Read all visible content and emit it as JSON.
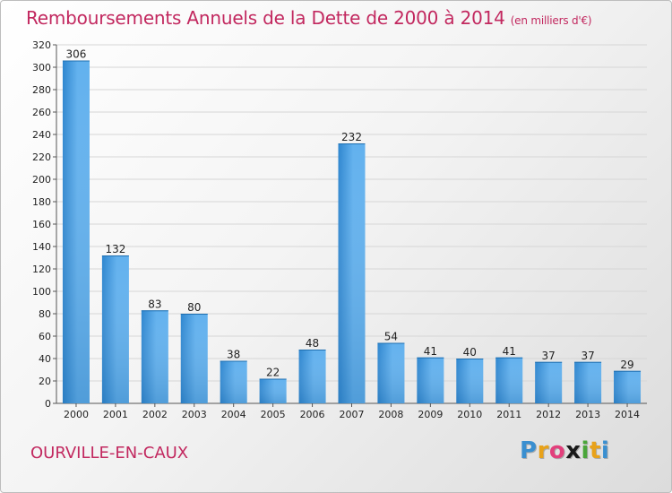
{
  "title": "Remboursements Annuels de la Dette de 2000 à 2014",
  "unit": "(en milliers d'€)",
  "commune": "OURVILLE-EN-CAUX",
  "logo": {
    "letters": [
      "P",
      "r",
      "o",
      "x",
      "i",
      "t",
      "i"
    ],
    "colors": [
      "#3a8fd0",
      "#e8a21a",
      "#e2407c",
      "#1a1a1a",
      "#4aa63a",
      "#e8a21a",
      "#3a8fd0"
    ]
  },
  "colors": {
    "title": "#c2285f",
    "bar_light": "#62b1ee",
    "bar_dark": "#2e86cf"
  },
  "chart_data": {
    "type": "bar",
    "categories": [
      "2000",
      "2001",
      "2002",
      "2003",
      "2004",
      "2005",
      "2006",
      "2007",
      "2008",
      "2009",
      "2010",
      "2011",
      "2012",
      "2013",
      "2014"
    ],
    "values": [
      306,
      132,
      83,
      80,
      38,
      22,
      48,
      232,
      54,
      41,
      40,
      41,
      37,
      37,
      29
    ],
    "ylim": [
      0,
      320
    ],
    "yticks": [
      0,
      20,
      40,
      60,
      80,
      100,
      120,
      140,
      160,
      180,
      200,
      220,
      240,
      260,
      280,
      300,
      320
    ],
    "grid": true,
    "legend": "none"
  }
}
